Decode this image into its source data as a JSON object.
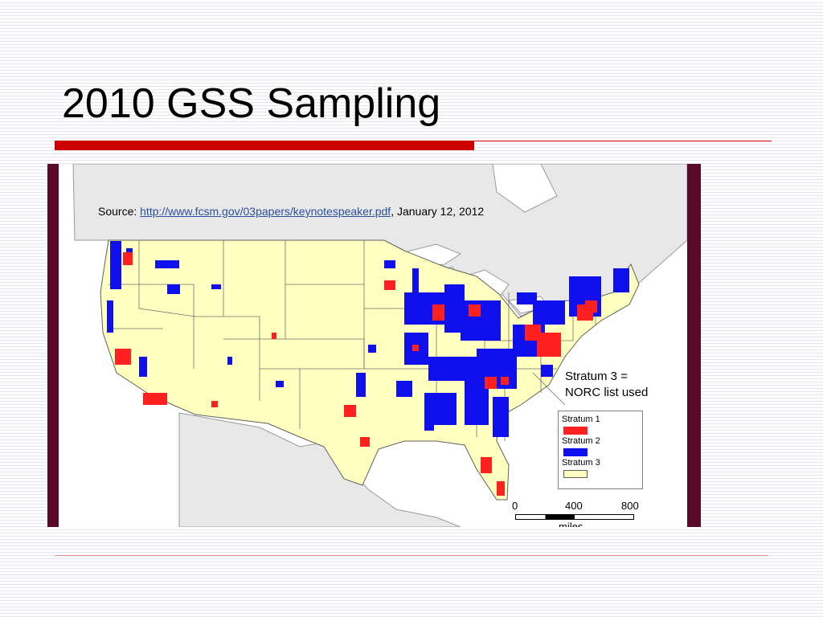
{
  "slide": {
    "title": "2010 GSS Sampling"
  },
  "map": {
    "source_prefix": "Source: ",
    "source_url": "http://www.fcsm.gov/03papers/keynotespeaker.pdf",
    "source_suffix": ", January 12, 2012",
    "note_line1": "Stratum 3 =",
    "note_line2": "NORC list used",
    "legend": [
      {
        "label": "Stratum 1",
        "color": "#ff2020"
      },
      {
        "label": "Stratum 2",
        "color": "#1010ee"
      },
      {
        "label": "Stratum 3",
        "color": "#ffffc0"
      }
    ],
    "scale": {
      "ticks": [
        "0",
        "400",
        "800"
      ],
      "units": "miles"
    },
    "colors": {
      "land": "#ffffc0",
      "other_land": "#e8e8e8",
      "water": "#ffffff",
      "border": "#808080",
      "frame": "#5a0a28",
      "title_rule": "#cc0000"
    }
  }
}
